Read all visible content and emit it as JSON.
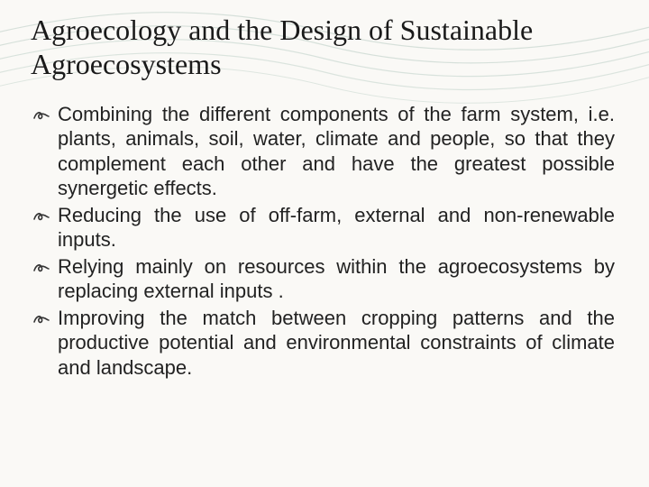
{
  "slide": {
    "title": "Agroecology and the Design of Sustainable Agroecosystems",
    "title_fontsize": 32,
    "title_font_family": "Georgia, serif",
    "title_color": "#1a1a1a",
    "background_color": "#faf9f6",
    "wave_line_color": "#d6e0da",
    "bullet_glyph": "་",
    "bullets": [
      {
        "text": "Combining the different components of the farm system, i.e. plants, animals, soil, water, climate and people, so that they complement each other and have the greatest possible synergetic effects."
      },
      {
        "text": "Reducing the use of off-farm, external and non-renewable inputs."
      },
      {
        "text": "Relying mainly on resources within the agroecosystems by replacing external inputs ."
      },
      {
        "text": "Improving the match between cropping patterns and the productive potential and environmental constraints of climate and landscape."
      }
    ],
    "body_fontsize": 22,
    "body_font_family": "Arial, sans-serif",
    "body_color": "#222222",
    "body_align": "justify"
  }
}
